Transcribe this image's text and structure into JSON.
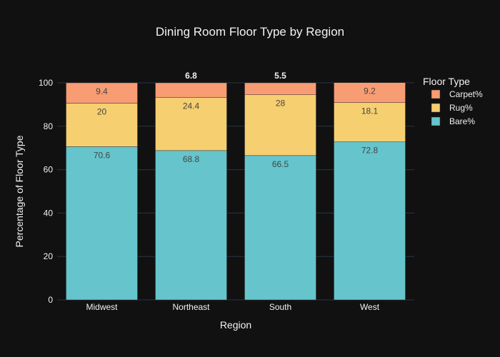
{
  "chart_data": {
    "type": "bar",
    "stacked": true,
    "title": "Dining Room Floor Type by Region",
    "xlabel": "Region",
    "ylabel": "Percentage of Floor Type",
    "categories": [
      "Midwest",
      "Northeast",
      "South",
      "West"
    ],
    "ylim": [
      0,
      100
    ],
    "yticks": [
      0,
      20,
      40,
      60,
      80,
      100
    ],
    "grid": true,
    "legend": {
      "title": "Floor Type",
      "position": "top-right"
    },
    "series": [
      {
        "name": "Bare%",
        "values": [
          70.6,
          68.8,
          66.5,
          72.8
        ],
        "color": "#66c5cc"
      },
      {
        "name": "Rug%",
        "values": [
          20,
          24.4,
          28,
          18.1
        ],
        "color": "#f6cf71"
      },
      {
        "name": "Carpet%",
        "values": [
          9.4,
          6.8,
          5.5,
          9.2
        ],
        "color": "#f89c74"
      }
    ]
  },
  "colors": {
    "background": "#111111",
    "gridline": "#283442",
    "text": "#f2f2f2",
    "label_inside": "#444444"
  }
}
